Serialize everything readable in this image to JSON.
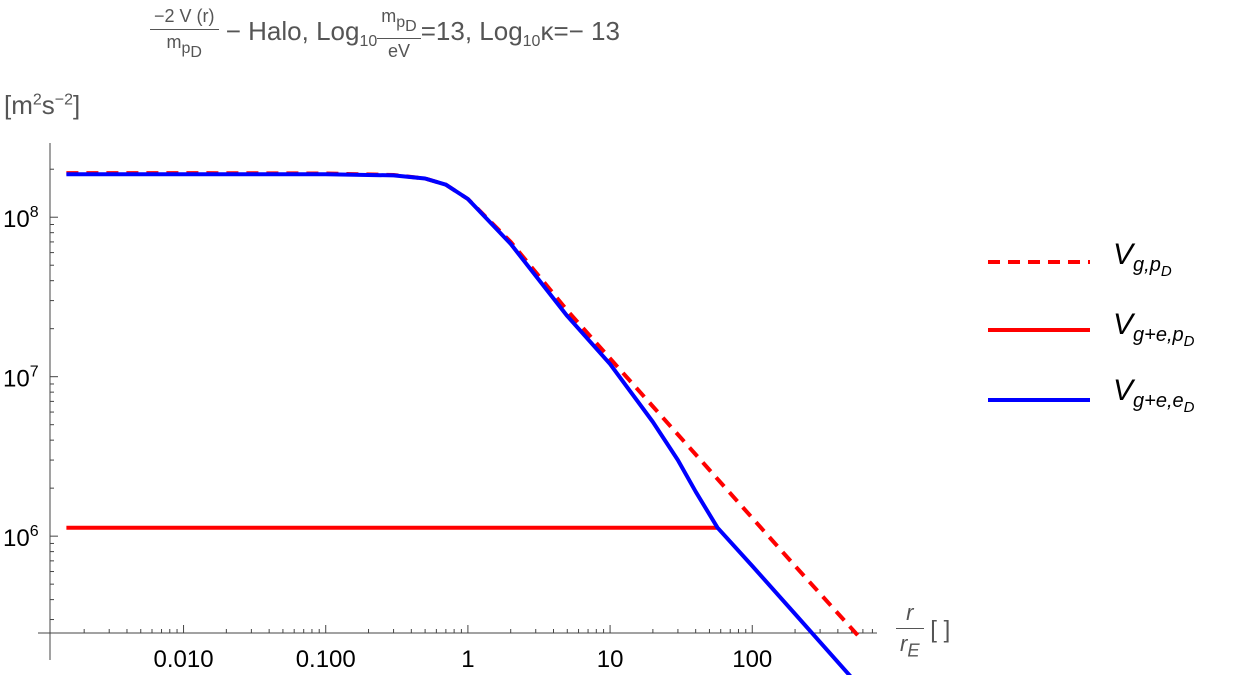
{
  "chart_data": {
    "type": "line",
    "title": {
      "frac_numerator": "−2 V (r)",
      "frac_denominator": "m",
      "frac_denominator_sub": "p",
      "frac_denominator_subsub": "D",
      "part1": " − Halo, Log",
      "part1_sub": "10",
      "frac2_numerator": "m",
      "frac2_numerator_sub": "p",
      "frac2_numerator_subsub": "D",
      "frac2_denominator": "eV",
      "part2": "=13, Log",
      "part2_sub": "10",
      "part3": "κ=− 13"
    },
    "ylabel": "[m²s⁻²]",
    "ylabel_parts": {
      "open": "[m",
      "sup1": "2",
      "mid": "s",
      "sup2": "−2",
      "close": "]"
    },
    "xlabel": {
      "num": "r",
      "den": "r",
      "den_sub": "E",
      "unit": "[ ]"
    },
    "x_scale": "log",
    "y_scale": "log",
    "xlim": [
      0.00115,
      754
    ],
    "ylim": [
      247000,
      292000000
    ],
    "x_ticks": [
      {
        "v": 0.01,
        "label": "0.010"
      },
      {
        "v": 0.1,
        "label": "0.100"
      },
      {
        "v": 1,
        "label": "1"
      },
      {
        "v": 10,
        "label": "10"
      },
      {
        "v": 100,
        "label": "100"
      }
    ],
    "y_ticks": [
      {
        "v": 1000000,
        "base": "10",
        "exp": "6"
      },
      {
        "v": 10000000,
        "base": "10",
        "exp": "7"
      },
      {
        "v": 100000000,
        "base": "10",
        "exp": "8"
      }
    ],
    "series": [
      {
        "name": "V_{g,p_D}",
        "label_main": "V",
        "label_sub": "g,p",
        "label_subsub": "D",
        "color": "#ff0000",
        "dash": true,
        "x": [
          0.0015,
          0.01,
          0.1,
          0.3,
          0.5,
          0.7,
          1,
          2,
          5,
          10,
          20,
          50,
          100,
          200,
          600
        ],
        "y": [
          189000000,
          189000000,
          188000000,
          184000000,
          175000000,
          160000000,
          130000000,
          70000000,
          26000000,
          13000000,
          6500000,
          2600000,
          1300000,
          650000,
          220000
        ]
      },
      {
        "name": "V_{g+e,p_D}",
        "label_main": "V",
        "label_sub": "g+e,p",
        "label_subsub": "D",
        "color": "#ff0000",
        "dash": false,
        "x": [
          0.0015,
          0.01,
          0.1,
          1,
          10,
          57
        ],
        "y": [
          1130000,
          1130000,
          1130000,
          1130000,
          1130000,
          1130000
        ]
      },
      {
        "name": "V_{g+e,e_D}",
        "label_main": "V",
        "label_sub": "g+e,e",
        "label_subsub": "D",
        "color": "#0000ff",
        "dash": false,
        "x": [
          0.0015,
          0.01,
          0.1,
          0.3,
          0.5,
          0.7,
          1,
          2,
          5,
          10,
          20,
          30,
          40,
          57,
          100,
          200,
          600
        ],
        "y": [
          186000000,
          186000000,
          186000000,
          183000000,
          175000000,
          160000000,
          130000000,
          68000000,
          24000000,
          12000000,
          5200000,
          3000000,
          1900000,
          1130000,
          650000,
          325000,
          108000
        ]
      }
    ],
    "legend": "right"
  }
}
